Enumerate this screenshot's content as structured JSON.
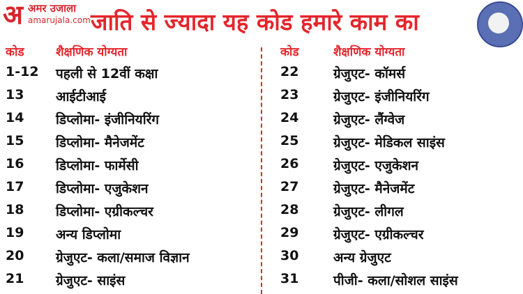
{
  "header": {
    "logo": {
      "mark": "अ",
      "name": "अमर उजाला",
      "site": "amarujala.com"
    },
    "title": "जाति से ज्यादा यह कोड हमारे काम का"
  },
  "tables": [
    {
      "headers": [
        "कोड",
        "शैक्षणिक योग्यता"
      ],
      "rows": [
        [
          "1-12",
          "पहली से 12वीं कक्षा"
        ],
        [
          "13",
          "आईटीआई"
        ],
        [
          "14",
          "डिप्लोमा- इंजीनियरिंग"
        ],
        [
          "15",
          "डिप्लोमा- मैनेजमेंट"
        ],
        [
          "16",
          "डिप्लोमा- फार्मेसी"
        ],
        [
          "17",
          "डिप्लोमा- एजुकेशन"
        ],
        [
          "18",
          "डिप्लोमा- एग्रीकल्चर"
        ],
        [
          "19",
          "अन्य डिप्लोमा"
        ],
        [
          "20",
          "ग्रेजुएट- कला/समाज विज्ञान"
        ],
        [
          "21",
          "ग्रेजुएट- साइंस"
        ]
      ]
    },
    {
      "headers": [
        "कोड",
        "शैक्षणिक योग्यता"
      ],
      "rows": [
        [
          "22",
          "ग्रेजुएट- कॉमर्स"
        ],
        [
          "23",
          "ग्रेजुएट- इंजीनियरिंग"
        ],
        [
          "24",
          "ग्रेजुएट- लैंग्वेज"
        ],
        [
          "25",
          "ग्रेजुएट- मेडिकल साइंस"
        ],
        [
          "26",
          "ग्रेजुएट- एजुकेशन"
        ],
        [
          "27",
          "ग्रेजुएट- मैनेजमेंट"
        ],
        [
          "28",
          "ग्रेजुएट- लीगल"
        ],
        [
          "29",
          "ग्रेजुएट- एग्रीकल्चर"
        ],
        [
          "30",
          "अन्य ग्रेजुएट"
        ],
        [
          "31",
          "पीजी- कला/सोशल साइंस"
        ]
      ]
    }
  ]
}
